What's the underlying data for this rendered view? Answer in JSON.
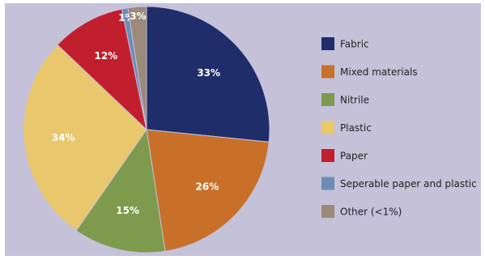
{
  "chart_data": {
    "type": "pie",
    "categories": [
      "Fabric",
      "Mixed materials",
      "Nitrile",
      "Plastic",
      "Paper",
      "Seperable paper and plastic",
      "Other (<1%)"
    ],
    "values": [
      33,
      26,
      15,
      34,
      12,
      1,
      3
    ],
    "value_labels": [
      "33%",
      "26%",
      "15%",
      "34%",
      "12%",
      "1%",
      "3%"
    ],
    "colors": [
      "#1f2d6a",
      "#c8702a",
      "#7e9a4c",
      "#e9c76d",
      "#c21f2e",
      "#6e8db6",
      "#9b897a"
    ],
    "legend": "right"
  }
}
